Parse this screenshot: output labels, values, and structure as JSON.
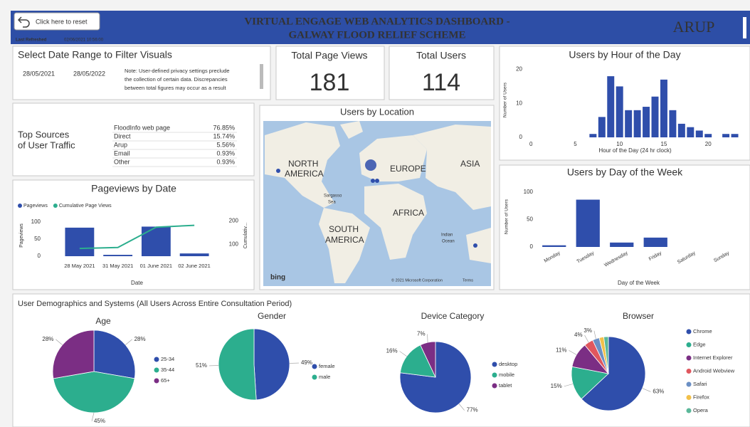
{
  "header": {
    "reset": "Click here to reset",
    "refreshed_label": "Last Refreshed",
    "refreshed": "02/06/2021 10:56:00",
    "title_lines": [
      "VIRTUAL ENGAGE WEB ANALYTICS DASHBOARD -",
      "GALWAY FLOOD RELIEF SCHEME"
    ],
    "brand": "ARUP"
  },
  "date_filter": {
    "title": "Select Date Range to Filter Visuals",
    "start": "28/05/2021",
    "end": "28/05/2022",
    "note_lines": [
      "Note: User-defined privacy settings preclude",
      "the collection of certain data. Discrepancies",
      "between total figures may occur as a result"
    ]
  },
  "kpis": [
    {
      "label": "Total Page Views",
      "value": 181
    },
    {
      "label": "Total Users",
      "value": 114
    }
  ],
  "traffic": {
    "title_lines": [
      "Top Sources",
      "of User Traffic"
    ],
    "rows": [
      [
        "FloodInfo web page",
        "76.85%"
      ],
      [
        "Direct",
        "15.74%"
      ],
      [
        "Arup",
        "5.56%"
      ],
      [
        "Email",
        "0.93%"
      ],
      [
        "Other",
        "0.93%"
      ]
    ]
  },
  "map": {
    "title": "Users by Location",
    "labels": [
      "NORTH",
      "AMERICA",
      "EUROPE",
      "ASIA",
      "AFRICA",
      "SOUTH",
      "AMERICA",
      "Sargasso",
      "Sea",
      "Indian",
      "Ocean"
    ],
    "credit": "© 2021 Microsoft Corporation",
    "terms": "Terms",
    "logo": "bing"
  },
  "demographics_title": "User Demographics and Systems (All Users Across Entire Consultation Period)",
  "chart_data": [
    {
      "type": "bar",
      "title": "Users by Hour of the Day",
      "x_label": "Hour of the Day (24 hr clock)",
      "y_label": "Number of Users",
      "x": [
        7,
        8,
        9,
        10,
        11,
        12,
        13,
        14,
        15,
        16,
        17,
        18,
        19,
        20,
        22,
        23
      ],
      "values": [
        1,
        6,
        18,
        15,
        8,
        8,
        9,
        12,
        17,
        8,
        4,
        3,
        2,
        1,
        1,
        1
      ],
      "color": "#2f4eab",
      "xlim": [
        -0.5,
        24
      ],
      "ylim": [
        0,
        22
      ],
      "xticks": [
        0,
        5,
        10,
        15,
        20
      ],
      "yticks": [
        0,
        10,
        20
      ]
    },
    {
      "type": "bar_line",
      "title": "Pageviews by Date",
      "x_label": "Date",
      "y_label": "Pageviews",
      "y2_label": "Cumulativ...",
      "categories": [
        "28 May 2021",
        "31 May 2021",
        "01 June 2021",
        "02 June 2021"
      ],
      "series": [
        {
          "name": "Pageviews",
          "color": "#2f4eab",
          "values": [
            83,
            4,
            86,
            8
          ]
        },
        {
          "name": "Cumulative Page Views",
          "color": "#2cae8e",
          "values": [
            83,
            87,
            173,
            181
          ],
          "axis": "y2"
        }
      ],
      "ylim": [
        0,
        120
      ],
      "yticks": [
        0,
        50,
        100
      ],
      "y2lim": [
        50,
        225
      ],
      "y2ticks": [
        100,
        200
      ],
      "legend": "top-left"
    },
    {
      "type": "bar",
      "title": "Users by Day of the Week",
      "x_label": "Day of the Week",
      "y_label": "Number of Users",
      "categories": [
        "Monday",
        "Tuesday",
        "Wednesday",
        "Friday",
        "Saturday",
        "Sunday"
      ],
      "values": [
        3,
        86,
        8,
        17,
        0,
        0
      ],
      "color": "#2f4eab",
      "ylim": [
        0,
        110
      ],
      "yticks": [
        0,
        50,
        100
      ]
    },
    {
      "type": "pie",
      "title": "Age",
      "categories": [
        "25-34",
        "35-44",
        "65+"
      ],
      "values": [
        28,
        45,
        28
      ],
      "value_labels": [
        "28%",
        "45%",
        "28%"
      ],
      "colors": [
        "#2f4eab",
        "#2cae8e",
        "#7b2e84"
      ]
    },
    {
      "type": "pie",
      "title": "Gender",
      "categories": [
        "female",
        "male"
      ],
      "values": [
        49,
        51
      ],
      "value_labels": [
        "49%",
        "51%"
      ],
      "colors": [
        "#2f4eab",
        "#2cae8e"
      ]
    },
    {
      "type": "pie",
      "title": "Device Category",
      "categories": [
        "desktop",
        "mobile",
        "tablet"
      ],
      "values": [
        77,
        16,
        7
      ],
      "value_labels": [
        "77%",
        "16%",
        "7%"
      ],
      "colors": [
        "#2f4eab",
        "#2cae8e",
        "#7b2e84"
      ]
    },
    {
      "type": "pie",
      "title": "Browser",
      "categories": [
        "Chrome",
        "Edge",
        "Internet Explorer",
        "Android Webview",
        "Safari",
        "Firefox",
        "Opera"
      ],
      "values": [
        63,
        15,
        11,
        4,
        3,
        2,
        2
      ],
      "value_labels": [
        "63%",
        "15%",
        "11%",
        "4%",
        "3%",
        null,
        null
      ],
      "colors": [
        "#2f4eab",
        "#2cae8e",
        "#7b2e84",
        "#e0575e",
        "#6b8fc4",
        "#f2c04a",
        "#5bb89a"
      ]
    }
  ]
}
